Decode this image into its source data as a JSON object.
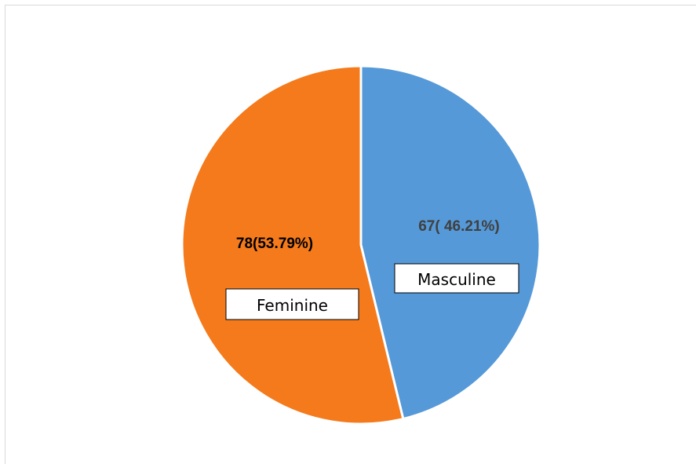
{
  "chart_data": {
    "type": "pie",
    "categories": [
      "Masculine",
      "Feminine"
    ],
    "values": [
      67,
      78
    ],
    "value_labels": [
      "67( 46.21%)",
      "78(53.79%)"
    ],
    "colors": [
      "#5599d8",
      "#f47a1c"
    ]
  }
}
